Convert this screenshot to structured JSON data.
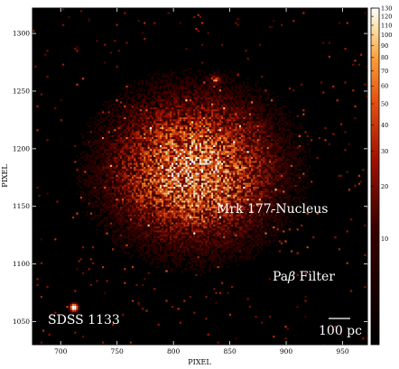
{
  "chart_data": {
    "type": "heatmap",
    "xlabel": "PIXEL",
    "ylabel": "PIXEL",
    "x_ticks": [
      700,
      750,
      800,
      850,
      900,
      950
    ],
    "y_ticks": [
      1050,
      1100,
      1150,
      1200,
      1250,
      1300
    ],
    "xlim": [
      675,
      972
    ],
    "ylim": [
      1030,
      1322
    ],
    "colorbar": {
      "ticks": [
        10,
        20,
        30,
        40,
        50,
        60,
        70,
        80,
        90,
        100,
        110,
        120,
        130
      ],
      "range": [
        0,
        130
      ],
      "colormap": "black-red-orange-yellow-white"
    },
    "sources": [
      {
        "label": "Mrk 177-Nucleus",
        "x": 817,
        "y": 1182,
        "peak": 90
      },
      {
        "label": "SDSS 1133",
        "x": 711,
        "y": 1063,
        "peak": 130
      },
      {
        "label": "",
        "x": 836,
        "y": 1261,
        "peak": 45
      }
    ],
    "annotations": {
      "nucleus": "Mrk 177-Nucleus",
      "filter": "Pa$\\beta$ Filter",
      "filter_display": "Paβ Filter",
      "companion": "SDSS 1133",
      "scalebar": "100 pc"
    }
  }
}
